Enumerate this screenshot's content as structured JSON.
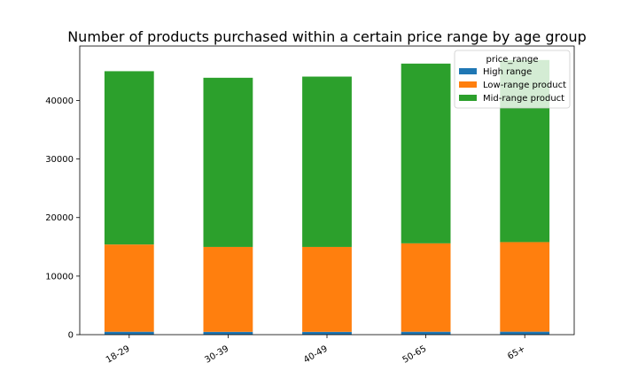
{
  "chart_data": {
    "type": "bar",
    "stacked": true,
    "title": "Number of products purchased within a certain price range by age group",
    "xlabel": "",
    "ylabel": "",
    "categories": [
      "18-29",
      "30-39",
      "40-49",
      "50-65",
      "65+"
    ],
    "series": [
      {
        "name": "High range",
        "color": "#1f77b4",
        "values": [
          500,
          480,
          480,
          500,
          510
        ]
      },
      {
        "name": "Low-range product",
        "color": "#ff7f0e",
        "values": [
          14900,
          14500,
          14500,
          15100,
          15300
        ]
      },
      {
        "name": "Mid-range product",
        "color": "#2ca02c",
        "values": [
          29600,
          28900,
          29100,
          30700,
          31100
        ]
      }
    ],
    "ylim": [
      0,
      49300
    ],
    "yticks": [
      0,
      10000,
      20000,
      30000,
      40000
    ],
    "grid": false,
    "legend": {
      "title": "price_range",
      "placement": "top-right"
    }
  }
}
